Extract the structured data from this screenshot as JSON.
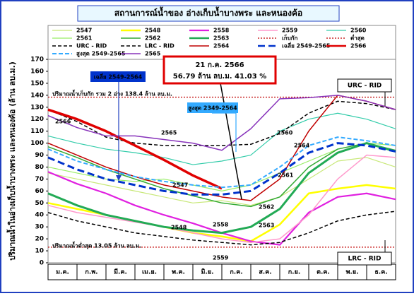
{
  "chart_data": {
    "type": "line",
    "title": "สถานการณ์น้ำของ อ่างเก็บน้ำบางพระ และหนองค้อ",
    "y_label": "ปริมาณน้ำในอ่างเก็บน้ำบางพระ และหนองค้อ (ล้าน ลบ.ม.)",
    "categories": [
      "ม.ค.",
      "ก.พ.",
      "มี.ค.",
      "เม.ย.",
      "พ.ค.",
      "มิ.ย.",
      "ก.ค.",
      "ส.ค.",
      "ก.ย.",
      "ต.ค.",
      "พ.ย.",
      "ธ.ค."
    ],
    "x": [
      0,
      1,
      2,
      3,
      4,
      5,
      6,
      7,
      8,
      9,
      10,
      11,
      12
    ],
    "xlim": [
      0,
      12
    ],
    "ylim": [
      0,
      170
    ],
    "yticks": [
      0,
      10,
      20,
      30,
      40,
      50,
      60,
      70,
      80,
      90,
      100,
      110,
      120,
      130,
      140,
      150,
      160,
      170
    ],
    "series": [
      {
        "name": "2547",
        "color": "#c8e878",
        "width": 1.2,
        "values": [
          75,
          70,
          65,
          60,
          55,
          50,
          52,
          48,
          55,
          70,
          85,
          88,
          80
        ]
      },
      {
        "name": "2548",
        "color": "#ffff00",
        "width": 2.5,
        "values": [
          50,
          45,
          40,
          35,
          30,
          25,
          22,
          18,
          32,
          58,
          62,
          65,
          62
        ]
      },
      {
        "name": "2558",
        "color": "#e020e0",
        "width": 2.2,
        "values": [
          76,
          66,
          58,
          48,
          40,
          33,
          25,
          18,
          15,
          42,
          55,
          58,
          53
        ]
      },
      {
        "name": "2559",
        "color": "#ff99cc",
        "width": 1.5,
        "values": [
          48,
          42,
          38,
          34,
          30,
          25,
          20,
          17,
          20,
          40,
          70,
          90,
          88
        ]
      },
      {
        "name": "2560",
        "color": "#33ccaa",
        "width": 1.2,
        "values": [
          106,
          100,
          95,
          92,
          88,
          82,
          85,
          90,
          110,
          120,
          125,
          120,
          112
        ]
      },
      {
        "name": "2561",
        "color": "#99ee66",
        "width": 1.2,
        "values": [
          80,
          75,
          70,
          68,
          70,
          65,
          60,
          65,
          75,
          85,
          95,
          100,
          98
        ]
      },
      {
        "name": "2562",
        "color": "#33aa33",
        "width": 1.5,
        "values": [
          97,
          88,
          78,
          70,
          62,
          56,
          50,
          47,
          55,
          80,
          95,
          100,
          94
        ]
      },
      {
        "name": "2563",
        "color": "#22aa55",
        "width": 3,
        "values": [
          58,
          48,
          40,
          35,
          30,
          27,
          25,
          30,
          45,
          75,
          92,
          100,
          93
        ]
      },
      {
        "name": "เก็บกัก",
        "color": "#c00000",
        "width": 1.2,
        "dash": "2,2",
        "value": 138.4
      },
      {
        "name": "ต่ำสุด",
        "color": "#c00000",
        "width": 1.2,
        "dash": "2,2",
        "value": 13.05
      },
      {
        "name": "URC - RID",
        "color": "#000000",
        "width": 1.5,
        "dash": "5,3",
        "values": [
          128,
          118,
          105,
          100,
          98,
          98,
          98,
          99,
          108,
          125,
          135,
          133,
          128
        ]
      },
      {
        "name": "LRC - RID",
        "color": "#000000",
        "width": 1.5,
        "dash": "5,3",
        "values": [
          42,
          35,
          30,
          25,
          22,
          19,
          17,
          15,
          17,
          25,
          35,
          40,
          43
        ]
      },
      {
        "name": "2564",
        "color": "#c00000",
        "width": 1.5,
        "values": [
          100,
          90,
          80,
          72,
          65,
          60,
          55,
          52,
          70,
          110,
          140,
          135,
          128
        ]
      },
      {
        "name": "เฉลี่ย 2549-2565",
        "color": "#0033cc",
        "width": 3,
        "dash": "10,5",
        "values": [
          88,
          78,
          70,
          65,
          60,
          57,
          57,
          60,
          75,
          92,
          100,
          98,
          93
        ]
      },
      {
        "name": "2566",
        "color": "#e00000",
        "width": 3.5,
        "values": [
          128,
          120,
          110,
          98,
          86,
          73,
          62,
          null,
          null,
          null,
          null,
          null,
          null
        ]
      },
      {
        "name": "สูงสุด 2549-2565",
        "color": "#33aaff",
        "width": 2,
        "dash": "6,3",
        "values": [
          95,
          85,
          78,
          72,
          68,
          65,
          63,
          65,
          80,
          98,
          105,
          102,
          98
        ]
      },
      {
        "name": "2565",
        "color": "#8833bb",
        "width": 1.5,
        "values": [
          123,
          113,
          106,
          106,
          103,
          100,
          94,
          112,
          137,
          138,
          140,
          135,
          128
        ]
      }
    ],
    "annotations": [
      {
        "text": "21 ก.ค. 2566"
      },
      {
        "text": "56.79 ล้าน ลบ.ม. 41.03 %"
      },
      {
        "text": "เฉลี่ย 2549-2564"
      },
      {
        "text": "สูงสุด 2349-2564"
      },
      {
        "text": "URC - RID"
      },
      {
        "text": "LRC - RID"
      },
      {
        "text": "ปริมาณน้ำเก็บกัก รวม 2 อ่าง 138.4 ล้าน ลบ.ม."
      },
      {
        "text": "ปริมาณน้ำต่ำสุด 13.05 ล้าน ลบ.ม."
      }
    ]
  }
}
